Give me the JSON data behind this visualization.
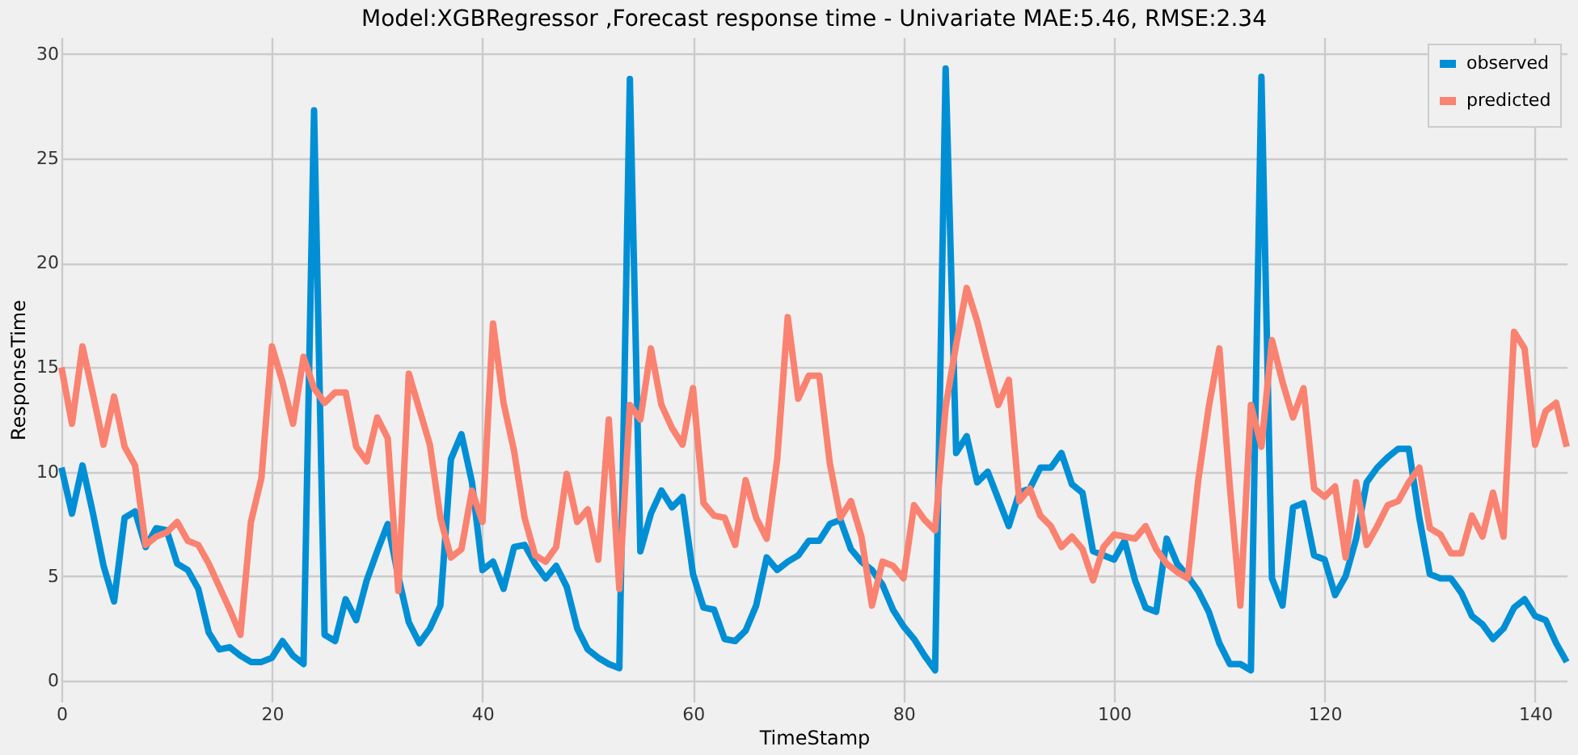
{
  "chart_data": {
    "type": "line",
    "title": "Model:XGBRegressor ,Forecast response time - Univariate MAE:5.46, RMSE:2.34",
    "xlabel": "TimeStamp",
    "ylabel": "ResponseTime",
    "x": [
      0,
      1,
      2,
      3,
      4,
      5,
      6,
      7,
      8,
      9,
      10,
      11,
      12,
      13,
      14,
      15,
      16,
      17,
      18,
      19,
      20,
      21,
      22,
      23,
      24,
      25,
      26,
      27,
      28,
      29,
      30,
      31,
      32,
      33,
      34,
      35,
      36,
      37,
      38,
      39,
      40,
      41,
      42,
      43,
      44,
      45,
      46,
      47,
      48,
      49,
      50,
      51,
      52,
      53,
      54,
      55,
      56,
      57,
      58,
      59,
      60,
      61,
      62,
      63,
      64,
      65,
      66,
      67,
      68,
      69,
      70,
      71,
      72,
      73,
      74,
      75,
      76,
      77,
      78,
      79,
      80,
      81,
      82,
      83,
      84,
      85,
      86,
      87,
      88,
      89,
      90,
      91,
      92,
      93,
      94,
      95,
      96,
      97,
      98,
      99,
      100,
      101,
      102,
      103,
      104,
      105,
      106,
      107,
      108,
      109,
      110,
      111,
      112,
      113,
      114,
      115,
      116,
      117,
      118,
      119,
      120,
      121,
      122,
      123,
      124,
      125,
      126,
      127,
      128,
      129,
      130,
      131,
      132,
      133,
      134,
      135,
      136,
      137,
      138,
      139,
      140,
      141,
      142,
      143
    ],
    "series": [
      {
        "name": "observed",
        "color": "#008fd5",
        "values": [
          10.2,
          8,
          10.3,
          8,
          5.5,
          3.8,
          7.8,
          8.1,
          6.4,
          7.3,
          7.2,
          5.6,
          5.3,
          4.4,
          2.3,
          1.5,
          1.6,
          1.2,
          0.9,
          0.9,
          1.1,
          1.9,
          1.2,
          0.8,
          27.3,
          2.2,
          1.9,
          3.9,
          2.9,
          4.8,
          6.2,
          7.5,
          5,
          2.8,
          1.8,
          2.5,
          3.6,
          10.6,
          11.8,
          9.5,
          5.3,
          5.7,
          4.4,
          6.4,
          6.5,
          5.6,
          4.9,
          5.5,
          4.5,
          2.5,
          1.5,
          1.1,
          0.8,
          0.6,
          28.8,
          6.2,
          8,
          9.1,
          8.3,
          8.8,
          5.1,
          3.5,
          3.4,
          2,
          1.9,
          2.4,
          3.6,
          5.9,
          5.3,
          5.7,
          6,
          6.7,
          6.7,
          7.5,
          7.7,
          6.3,
          5.7,
          5.3,
          4.6,
          3.4,
          2.6,
          2,
          1.2,
          0.5,
          29.3,
          10.9,
          11.7,
          9.5,
          10,
          8.7,
          7.4,
          9,
          9.2,
          10.2,
          10.2,
          10.9,
          9.4,
          9,
          6.2,
          6,
          5.8,
          6.7,
          4.8,
          3.5,
          3.3,
          6.8,
          5.6,
          5,
          4.3,
          3.3,
          1.8,
          0.8,
          0.8,
          0.5,
          28.9,
          4.9,
          3.6,
          8.3,
          8.5,
          6,
          5.8,
          4.1,
          5,
          6.8,
          9.5,
          10.2,
          10.7,
          11.1,
          11.1,
          7.8,
          5.1,
          4.9,
          4.9,
          4.2,
          3.1,
          2.7,
          2,
          2.5,
          3.5,
          3.9,
          3.1,
          2.9,
          1.8,
          0.9
        ]
      },
      {
        "name": "predicted",
        "color": "#fa8270",
        "values": [
          15,
          12.3,
          16,
          13.7,
          11.3,
          13.6,
          11.2,
          10.3,
          6.5,
          6.9,
          7.1,
          7.6,
          6.7,
          6.5,
          5.6,
          4.5,
          3.4,
          2.2,
          7.6,
          9.7,
          16,
          14.3,
          12.3,
          15.5,
          14,
          13.3,
          13.8,
          13.8,
          11.2,
          10.5,
          12.6,
          11.6,
          4.3,
          14.7,
          13,
          11.3,
          7.8,
          5.9,
          6.3,
          9.1,
          7.6,
          17.1,
          13.3,
          11,
          7.8,
          6,
          5.7,
          6.4,
          9.9,
          7.6,
          8.2,
          5.8,
          12.5,
          4.4,
          13.2,
          12.5,
          15.9,
          13.2,
          12.1,
          11.3,
          14,
          8.5,
          7.9,
          7.8,
          6.5,
          9.6,
          7.8,
          6.8,
          10.6,
          17.4,
          13.5,
          14.6,
          14.6,
          10.4,
          7.8,
          8.6,
          6.9,
          3.6,
          5.7,
          5.5,
          4.9,
          8.4,
          7.7,
          7.2,
          13.1,
          16.1,
          18.8,
          17.2,
          15.2,
          13.2,
          14.4,
          8.6,
          9.2,
          7.9,
          7.4,
          6.4,
          6.9,
          6.3,
          4.8,
          6.4,
          7,
          6.9,
          6.8,
          7.4,
          6.3,
          5.6,
          5.2,
          4.9,
          9.6,
          13.1,
          15.9,
          9.3,
          3.6,
          13.2,
          11.2,
          16.3,
          14.3,
          12.6,
          14,
          9.2,
          8.8,
          9.3,
          5.9,
          9.5,
          6.5,
          7.4,
          8.4,
          8.6,
          9.5,
          10.2,
          7.3,
          7,
          6.1,
          6.1,
          7.9,
          6.9,
          9,
          6.9,
          16.7,
          15.9,
          11.3,
          12.9,
          13.3,
          11.2
        ]
      }
    ],
    "xlim": [
      0,
      143
    ],
    "ylim": [
      -1,
      30.8
    ],
    "xticks": [
      0,
      20,
      40,
      60,
      80,
      100,
      120,
      140
    ],
    "yticks": [
      0,
      5,
      10,
      15,
      20,
      25,
      30
    ],
    "grid": true,
    "legend": "top right",
    "line_style": "solid",
    "marker": "none"
  }
}
